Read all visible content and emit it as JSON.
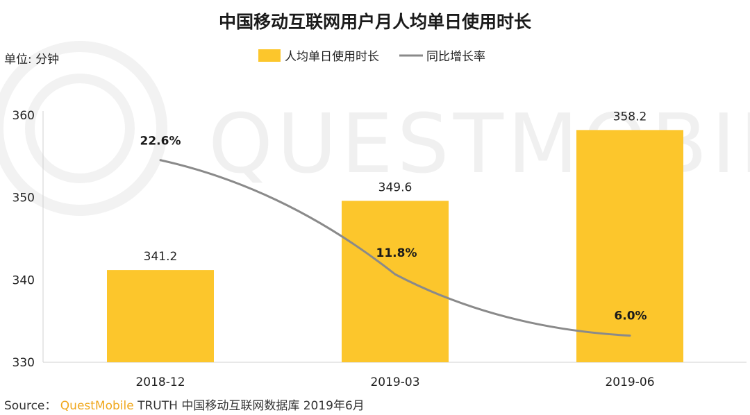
{
  "chart_data": {
    "type": "bar",
    "title": "中国移动互联网用户月人均单日使用时长",
    "unit_label": "单位: 分钟",
    "categories": [
      "2018-12",
      "2019-03",
      "2019-06"
    ],
    "series": [
      {
        "name": "人均单日使用时长",
        "kind": "bar",
        "values": [
          341.2,
          349.6,
          358.2
        ],
        "value_labels": [
          "341.2",
          "349.6",
          "358.2"
        ],
        "color": "#fcc62c"
      },
      {
        "name": "同比增长率",
        "kind": "line",
        "values": [
          22.6,
          11.8,
          6.0
        ],
        "value_labels": [
          "22.6%",
          "11.8%",
          "6.0%"
        ],
        "color": "#8a8a8a"
      }
    ],
    "y_ticks": [
      "330",
      "340",
      "350",
      "360"
    ],
    "ylim": [
      330,
      360
    ],
    "legend_position": "top-center",
    "watermark": "QUESTMOBILE"
  },
  "source": {
    "prefix": "Source：",
    "brand": "QuestMobile",
    "rest": "TRUTH 中国移动互联网数据库 2019年6月"
  }
}
